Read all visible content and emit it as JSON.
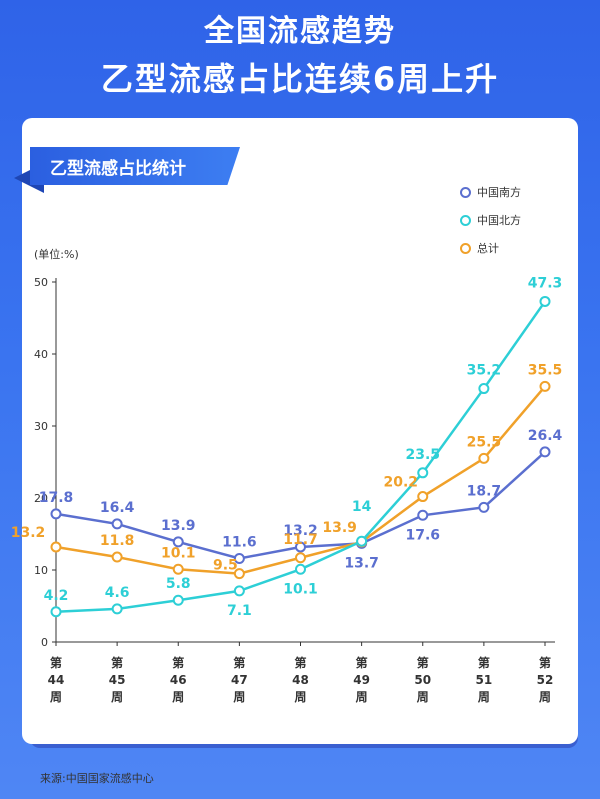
{
  "header": {
    "title_line1": "全国流感趋势",
    "title_line2": "乙型流感占比连续6周上升"
  },
  "panel": {
    "ribbon_label": "乙型流感占比统计",
    "unit_label": "(单位:%)",
    "source": "来源:中国国家流感中心"
  },
  "colors": {
    "south": "#5b6fcf",
    "north": "#2dcfd6",
    "total": "#f0a12a"
  },
  "chart_data": {
    "type": "line",
    "categories": [
      [
        "第",
        "44",
        "周"
      ],
      [
        "第",
        "45",
        "周"
      ],
      [
        "第",
        "46",
        "周"
      ],
      [
        "第",
        "47",
        "周"
      ],
      [
        "第",
        "48",
        "周"
      ],
      [
        "第",
        "49",
        "周"
      ],
      [
        "第",
        "50",
        "周"
      ],
      [
        "第",
        "51",
        "周"
      ],
      [
        "第",
        "52",
        "周"
      ]
    ],
    "ylim": [
      0,
      50
    ],
    "yticks": [
      0,
      10,
      20,
      30,
      40,
      50
    ],
    "legend_position": "top-right",
    "series": [
      {
        "name": "中国南方",
        "key": "south",
        "values": [
          17.8,
          16.4,
          13.9,
          11.6,
          13.2,
          13.7,
          17.6,
          18.7,
          26.4
        ],
        "labels": [
          "17.8",
          "16.4",
          "13.9",
          "11.6",
          "13.2",
          "13.7",
          "17.6",
          "18.7",
          "26.4"
        ]
      },
      {
        "name": "中国北方",
        "key": "north",
        "values": [
          4.2,
          4.6,
          5.8,
          7.1,
          10.1,
          14,
          23.5,
          35.2,
          47.3
        ],
        "labels": [
          "4.2",
          "4.6",
          "5.8",
          "7.1",
          "10.1",
          "14",
          "23.5",
          "35.2",
          "47.3"
        ]
      },
      {
        "name": "总计",
        "key": "total",
        "values": [
          13.2,
          11.8,
          10.1,
          9.5,
          11.7,
          13.9,
          20.2,
          25.5,
          35.5
        ],
        "labels": [
          "13.2",
          "11.8",
          "10.1",
          "9.5",
          "11.7",
          "13.9",
          "20.2",
          "25.5",
          "35.5"
        ]
      }
    ]
  }
}
